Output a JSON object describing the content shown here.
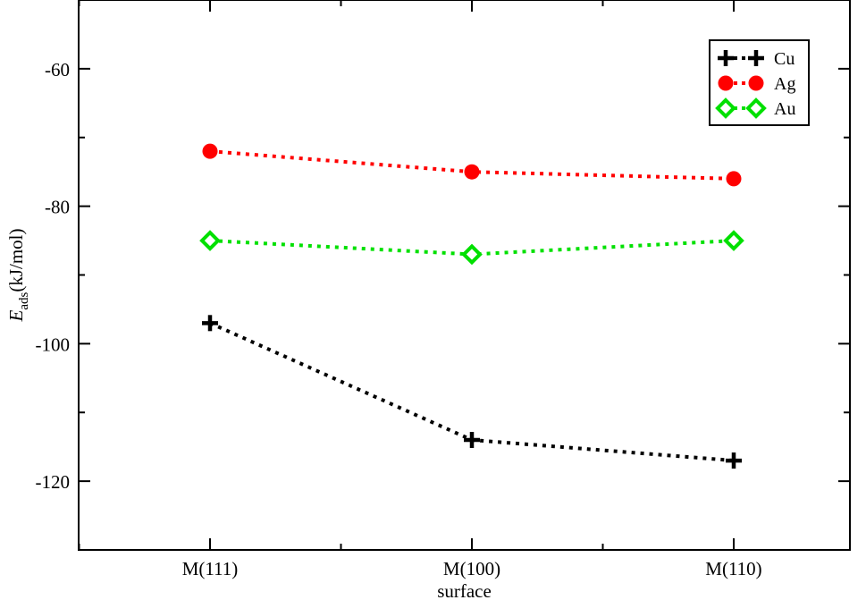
{
  "chart_data": {
    "type": "line",
    "title": "",
    "xlabel": "surface",
    "ylabel_main": "E",
    "ylabel_sub": "ads",
    "ylabel_unit": "(kJ/mol)",
    "categories": [
      "M(111)",
      "M(100)",
      "M(110)"
    ],
    "ylim": [
      -130,
      -50
    ],
    "yticks": [
      -120,
      -100,
      -80,
      -60
    ],
    "ytick_labels": [
      "-120",
      "-100",
      "-80",
      "-60"
    ],
    "legend_position": "top-right",
    "series": [
      {
        "name": "Cu",
        "marker": "plus",
        "color": "#000000",
        "values": [
          -97,
          -114,
          -117
        ]
      },
      {
        "name": "Ag",
        "marker": "circle",
        "color": "#ff0000",
        "values": [
          -72,
          -75,
          -76
        ]
      },
      {
        "name": "Au",
        "marker": "diamond",
        "color": "#00e000",
        "values": [
          -85,
          -87,
          -85
        ]
      }
    ]
  }
}
